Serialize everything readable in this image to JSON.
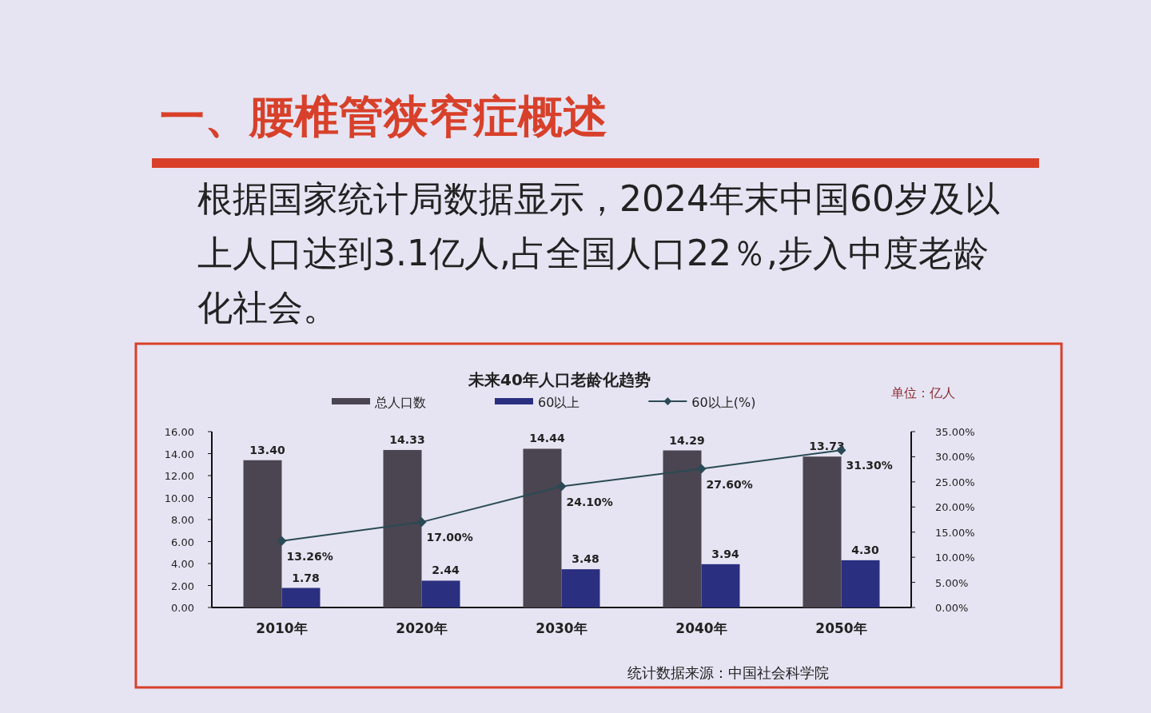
{
  "chart_data": {
    "type": "bar",
    "title": "未来40年人口老龄化趋势",
    "annotations": [
      "一、腰椎管狭窄症概述",
      "根据国家统计局数据显示，2024年末中国60岁及以上人口达到3.1亿人,占全国人口22％,步入中度老龄化社会。",
      "单位：亿人",
      "统计数据来源：中国社会科学院"
    ],
    "categories": [
      "2010年",
      "2020年",
      "2030年",
      "2040年",
      "2050年"
    ],
    "series": [
      {
        "name": "总人口数",
        "color": "#4a4550",
        "values": [
          13.4,
          14.33,
          14.44,
          14.29,
          13.73
        ],
        "value_labels": [
          "13.40",
          "14.33",
          "14.44",
          "14.29",
          "13.73"
        ]
      },
      {
        "name": "60以上",
        "color": "#2b2f80",
        "values": [
          1.78,
          2.44,
          3.48,
          3.94,
          4.3
        ],
        "value_labels": [
          "1.78",
          "2.44",
          "3.48",
          "3.94",
          "4.30"
        ]
      },
      {
        "name": "60以上(%)",
        "type": "line",
        "axis": "y2",
        "color": "#2a4a55",
        "values": [
          13.26,
          17.0,
          24.1,
          27.6,
          31.3
        ],
        "value_labels": [
          "13.26%",
          "17.00%",
          "24.10%",
          "27.60%",
          "31.30%"
        ]
      }
    ],
    "ylim": [
      0,
      16
    ],
    "yticks": [
      {
        "value": 0,
        "label": "0.00"
      },
      {
        "value": 2,
        "label": "2.00"
      },
      {
        "value": 4,
        "label": "4.00"
      },
      {
        "value": 6,
        "label": "6.00"
      },
      {
        "value": 8,
        "label": "8.00"
      },
      {
        "value": 10,
        "label": "10.00"
      },
      {
        "value": 12,
        "label": "12.00"
      },
      {
        "value": 14,
        "label": "14.00"
      },
      {
        "value": 16,
        "label": "16.00"
      }
    ],
    "y2lim": [
      0,
      35
    ],
    "y2ticks": [
      {
        "value": 0,
        "label": "0.00%"
      },
      {
        "value": 5,
        "label": "5.00%"
      },
      {
        "value": 10,
        "label": "10.00%"
      },
      {
        "value": 15,
        "label": "15.00%"
      },
      {
        "value": 20,
        "label": "20.00%"
      },
      {
        "value": 25,
        "label": "25.00%"
      },
      {
        "value": 30,
        "label": "30.00%"
      },
      {
        "value": 35,
        "label": "35.00%"
      }
    ],
    "legend": "top",
    "marker": "diamond"
  }
}
